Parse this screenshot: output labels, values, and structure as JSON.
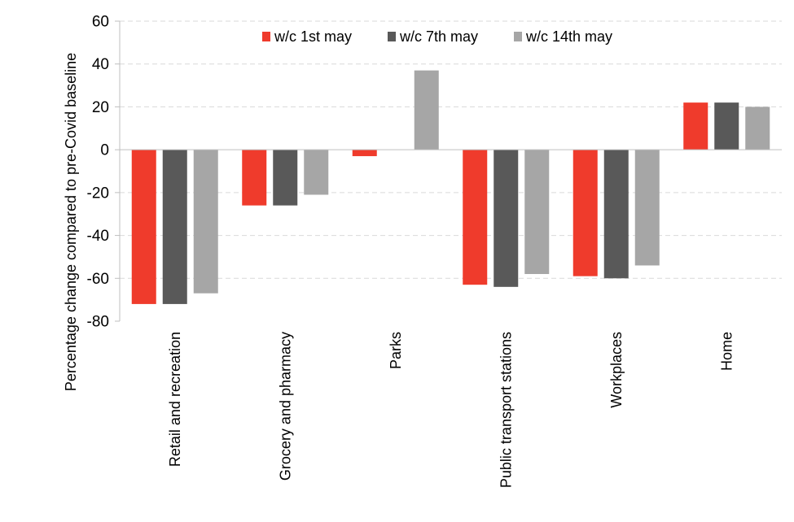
{
  "chart_data": {
    "type": "bar",
    "title": "",
    "xlabel": "",
    "ylabel": "Percentage change compared to pre-Covid baseline",
    "ylim": [
      -80,
      60
    ],
    "yticks": [
      60,
      40,
      20,
      0,
      -20,
      -40,
      -60,
      -80
    ],
    "ytick_labels": [
      "60",
      "40",
      "20",
      "0",
      "-20",
      "-40",
      "-60",
      "-80"
    ],
    "grid": true,
    "legend_position": "top-center",
    "categories": [
      "Retail and recreation",
      "Grocery and pharmacy",
      "Parks",
      "Public transport stations",
      "Workplaces",
      "Home"
    ],
    "series": [
      {
        "name": "w/c 1st may",
        "color": "#ef3b2c",
        "values": [
          -72,
          -26,
          -3,
          -63,
          -59,
          22
        ]
      },
      {
        "name": "w/c 7th may",
        "color": "#595959",
        "values": [
          -72,
          -26,
          0,
          -64,
          -60,
          22
        ]
      },
      {
        "name": "w/c 14th may",
        "color": "#a6a6a6",
        "values": [
          -67,
          -21,
          37,
          -58,
          -54,
          20
        ]
      }
    ]
  }
}
